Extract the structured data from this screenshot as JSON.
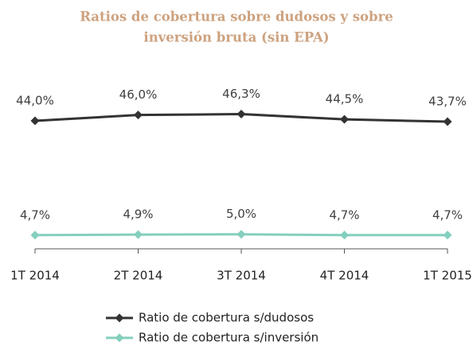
{
  "chart_data": {
    "type": "line",
    "title": [
      "Ratios de cobertura sobre dudosos y sobre",
      "inversión bruta (sin EPA)"
    ],
    "categories": [
      "1T 2014",
      "2T 2014",
      "3T 2014",
      "4T 2014",
      "1T 2015"
    ],
    "series": [
      {
        "name": "Ratio de cobertura s/dudosos",
        "color": "#333333",
        "values": [
          44.0,
          46.0,
          46.3,
          44.5,
          43.7
        ],
        "value_labels": [
          "44,0%",
          "46,0%",
          "46,3%",
          "44,5%",
          "43,7%"
        ]
      },
      {
        "name": "Ratio de cobertura s/inversión",
        "color": "#84cfbd",
        "values": [
          4.7,
          4.9,
          5.0,
          4.7,
          4.7
        ],
        "value_labels": [
          "4,7%",
          "4,9%",
          "5,0%",
          "4,7%",
          "4,7%"
        ]
      }
    ],
    "ylim": [
      0,
      50
    ]
  }
}
